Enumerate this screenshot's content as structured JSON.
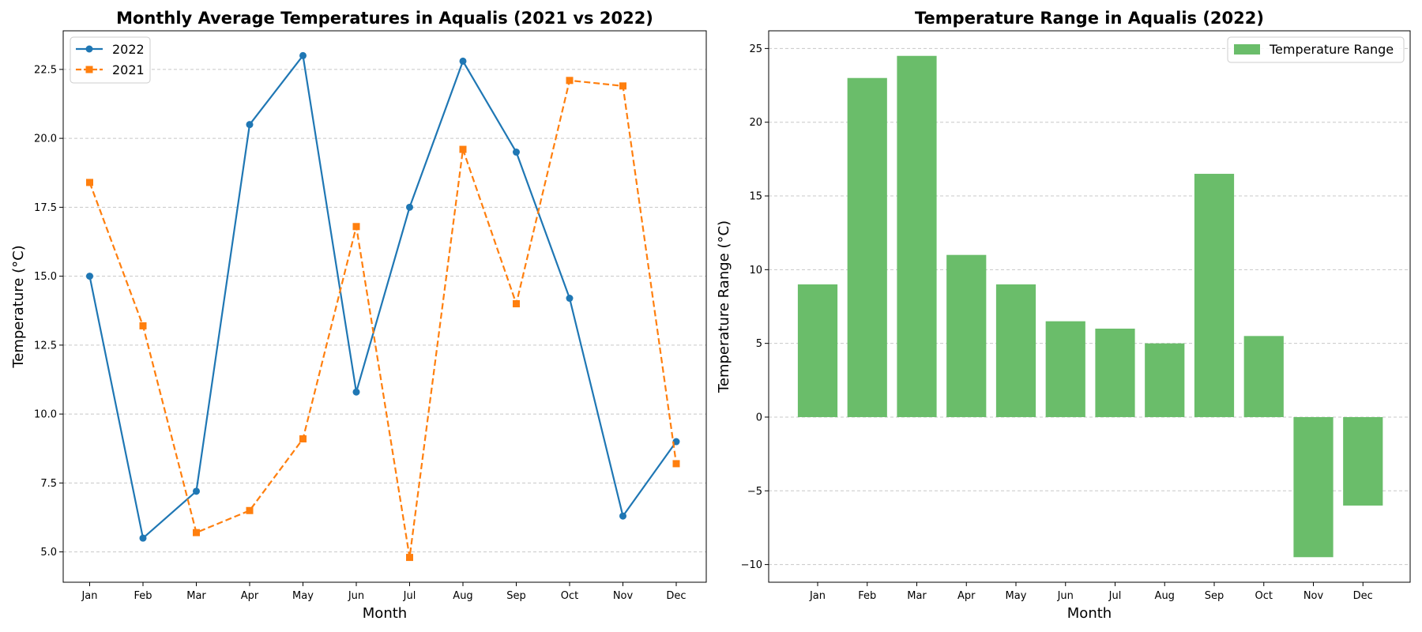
{
  "chart_data": [
    {
      "type": "line",
      "title": "Monthly Average Temperatures in Aqualis (2021 vs 2022)",
      "xlabel": "Month",
      "ylabel": "Temperature (°C)",
      "categories": [
        "Jan",
        "Feb",
        "Mar",
        "Apr",
        "May",
        "Jun",
        "Jul",
        "Aug",
        "Sep",
        "Oct",
        "Nov",
        "Dec"
      ],
      "ylim": [
        3.9,
        23.9
      ],
      "yticks": [
        5.0,
        7.5,
        10.0,
        12.5,
        15.0,
        17.5,
        20.0,
        22.5
      ],
      "ytick_labels": [
        "5.0",
        "7.5",
        "10.0",
        "12.5",
        "15.0",
        "17.5",
        "20.0",
        "22.5"
      ],
      "grid": "y-dashed",
      "legend": "top-left",
      "series": [
        {
          "name": "2022",
          "color": "#1f77b4",
          "marker": "circle",
          "linestyle": "solid",
          "values": [
            15.0,
            5.5,
            7.2,
            20.5,
            23.0,
            10.8,
            17.5,
            22.8,
            19.5,
            14.2,
            6.3,
            9.0
          ]
        },
        {
          "name": "2021",
          "color": "#ff7f0e",
          "marker": "square",
          "linestyle": "dashed",
          "values": [
            18.4,
            13.2,
            5.7,
            6.5,
            9.1,
            16.8,
            4.8,
            19.6,
            14.0,
            22.1,
            21.9,
            8.2
          ]
        }
      ]
    },
    {
      "type": "bar",
      "title": "Temperature Range in Aqualis (2022)",
      "xlabel": "Month",
      "ylabel": "Temperature Range (°C)",
      "categories": [
        "Jan",
        "Feb",
        "Mar",
        "Apr",
        "May",
        "Jun",
        "Jul",
        "Aug",
        "Sep",
        "Oct",
        "Nov",
        "Dec"
      ],
      "ylim": [
        -11.2,
        26.2
      ],
      "yticks": [
        -10,
        -5,
        0,
        5,
        10,
        15,
        20,
        25
      ],
      "ytick_labels": [
        "−10",
        "−5",
        "0",
        "5",
        "10",
        "15",
        "20",
        "25"
      ],
      "grid": "y-dashed",
      "legend": "top-right",
      "series": [
        {
          "name": "Temperature Range",
          "color": "#6abd6a",
          "values": [
            9.0,
            23.0,
            24.5,
            11.0,
            9.0,
            6.5,
            6.0,
            5.0,
            16.5,
            5.5,
            -9.5,
            -6.0
          ]
        }
      ]
    }
  ]
}
